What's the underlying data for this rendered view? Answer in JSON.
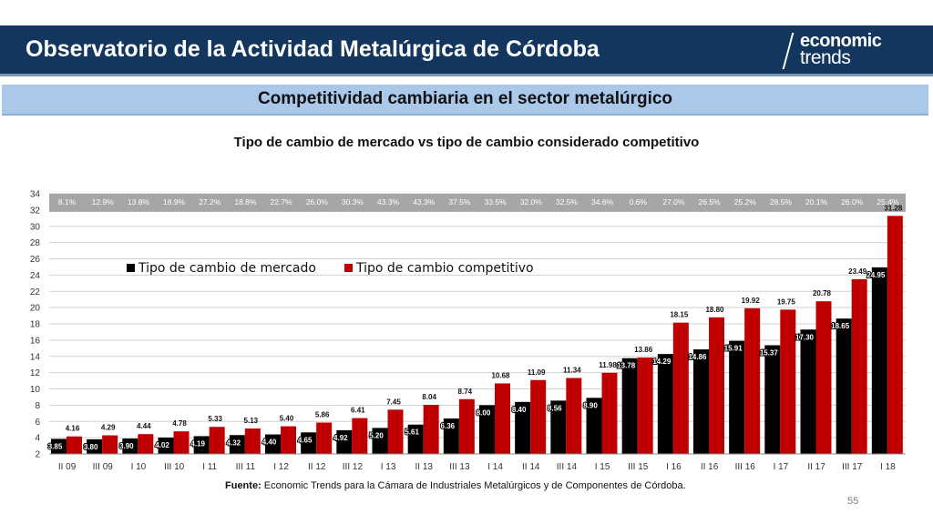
{
  "header": {
    "title": "Observatorio de la Actividad Metalúrgica de Córdoba"
  },
  "logo": {
    "line1": "economic",
    "line2": "trends"
  },
  "section": {
    "title": "Competitividad cambiaria en el sector metalúrgico"
  },
  "chart_data": {
    "type": "bar",
    "title": "Tipo de cambio de mercado vs tipo de cambio considerado competitivo",
    "categories": [
      "II 09",
      "III 09",
      "I 10",
      "III 10",
      "I 11",
      "III 11",
      "I 12",
      "II 12",
      "III 12",
      "I 13",
      "II 13",
      "III 13",
      "I 14",
      "II 14",
      "III 14",
      "I 15",
      "III 15",
      "I 16",
      "II 16",
      "III 16",
      "I 17",
      "II 17",
      "III 17",
      "I 18"
    ],
    "series": [
      {
        "name": "Tipo de cambio de mercado",
        "values": [
          3.85,
          3.8,
          3.9,
          4.02,
          4.19,
          4.32,
          4.4,
          4.65,
          4.92,
          5.2,
          5.61,
          6.36,
          8.0,
          8.4,
          8.56,
          8.9,
          13.78,
          14.29,
          14.86,
          15.91,
          15.37,
          17.3,
          18.65,
          24.95
        ]
      },
      {
        "name": "Tipo de cambio competitivo",
        "values": [
          4.16,
          4.29,
          4.44,
          4.78,
          5.33,
          5.13,
          5.4,
          5.86,
          6.41,
          7.45,
          8.04,
          8.74,
          10.68,
          11.09,
          11.34,
          11.98,
          13.86,
          18.15,
          18.8,
          19.92,
          19.75,
          20.78,
          23.49,
          31.28
        ]
      }
    ],
    "gap_labels": [
      "8.1%",
      "12.9%",
      "13.8%",
      "18.9%",
      "27.2%",
      "18.8%",
      "22.7%",
      "26.0%",
      "30.3%",
      "43.3%",
      "43.3%",
      "37.5%",
      "33.5%",
      "32.0%",
      "32.5%",
      "34.6%",
      "0.6%",
      "27.0%",
      "26.5%",
      "25.2%",
      "28.5%",
      "20.1%",
      "26.0%",
      "25.4%"
    ],
    "ylim": [
      2,
      34
    ],
    "yticks": [
      2,
      4,
      6,
      8,
      10,
      12,
      14,
      16,
      18,
      20,
      22,
      24,
      26,
      28,
      30,
      32,
      34
    ],
    "grid": true,
    "legend": "top-left",
    "colors": {
      "market": "#000000",
      "competitive": "#c00000",
      "gap_band": "#a6a6a6",
      "grid": "#d0d0d0"
    }
  },
  "source": {
    "label": "Fuente:",
    "text": "Economic Trends para la Cámara de Industriales Metalúrgicos y de Componentes de Córdoba."
  },
  "page": {
    "number": "55"
  }
}
